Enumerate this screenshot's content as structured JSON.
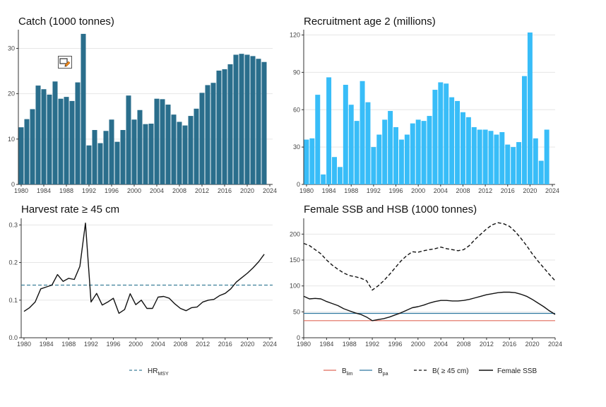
{
  "colors": {
    "catch_bar": "#2a6e8c",
    "recruit_bar": "#38bdf8",
    "hr_line": "#111111",
    "hrmsy_line": "#3d7f99",
    "blim_line": "#e06a5a",
    "bpa_line": "#2f78a0",
    "grid": "#e6e6e6",
    "axis": "#333333"
  },
  "icons": {
    "edit": "edit-pencil-icon"
  },
  "legends": {
    "hr": {
      "msy_main": "HR",
      "msy_sub": "MSY"
    },
    "ssb": {
      "blim_main": "B",
      "blim_sub": "lim",
      "bpa_main": "B",
      "bpa_sub": "pa",
      "b45": "B( ≥ 45 cm)",
      "female": "Female SSB"
    }
  },
  "chart_data": [
    {
      "type": "bar",
      "title": "Catch (1000 tonnes)",
      "xlabel": "",
      "ylabel": "",
      "x": [
        1980,
        1981,
        1982,
        1983,
        1984,
        1985,
        1986,
        1987,
        1988,
        1989,
        1990,
        1991,
        1992,
        1993,
        1994,
        1995,
        1996,
        1997,
        1998,
        1999,
        2000,
        2001,
        2002,
        2003,
        2004,
        2005,
        2006,
        2007,
        2008,
        2009,
        2010,
        2011,
        2012,
        2013,
        2014,
        2015,
        2016,
        2017,
        2018,
        2019,
        2020,
        2021,
        2022,
        2023
      ],
      "values": [
        12.6,
        14.4,
        16.6,
        21.8,
        21.0,
        19.8,
        22.7,
        18.9,
        19.3,
        18.4,
        22.5,
        33.2,
        8.6,
        12.0,
        9.1,
        11.8,
        14.3,
        9.4,
        12.0,
        19.6,
        14.3,
        16.4,
        13.3,
        13.4,
        18.9,
        18.8,
        17.6,
        15.4,
        13.8,
        13.0,
        15.1,
        16.7,
        20.2,
        21.9,
        22.4,
        25.1,
        25.4,
        26.5,
        28.6,
        28.8,
        28.6,
        28.3,
        27.7,
        27.0
      ],
      "xlim": [
        1979.5,
        2024.5
      ],
      "ylim": [
        0,
        33.5
      ],
      "xticks": [
        1980,
        1984,
        1988,
        1992,
        1996,
        2000,
        2004,
        2008,
        2012,
        2016,
        2020,
        2024
      ],
      "yticks": [
        0,
        10,
        20,
        30
      ],
      "grid": true
    },
    {
      "type": "bar",
      "title": "Recruitment age 2 (millions)",
      "xlabel": "",
      "ylabel": "",
      "x": [
        1980,
        1981,
        1982,
        1983,
        1984,
        1985,
        1986,
        1987,
        1988,
        1989,
        1990,
        1991,
        1992,
        1993,
        1994,
        1995,
        1996,
        1997,
        1998,
        1999,
        2000,
        2001,
        2002,
        2003,
        2004,
        2005,
        2006,
        2007,
        2008,
        2009,
        2010,
        2011,
        2012,
        2013,
        2014,
        2015,
        2016,
        2017,
        2018,
        2019,
        2020,
        2021,
        2022,
        2023
      ],
      "values": [
        36,
        37,
        72,
        8,
        86,
        22,
        14,
        80,
        64,
        51,
        83,
        66,
        30,
        40,
        52,
        59,
        46,
        36,
        40,
        49,
        52,
        51,
        55,
        76,
        82,
        81,
        70,
        67,
        58,
        54,
        46,
        44,
        44,
        43,
        40,
        42,
        32,
        30,
        34,
        87,
        122,
        37,
        19,
        44
      ],
      "xlim": [
        1979.5,
        2024.5
      ],
      "ylim": [
        0,
        122
      ],
      "xticks": [
        1980,
        1984,
        1988,
        1992,
        1996,
        2000,
        2004,
        2008,
        2012,
        2016,
        2020,
        2024
      ],
      "yticks": [
        0,
        30,
        60,
        90,
        120
      ],
      "grid": true
    },
    {
      "type": "line",
      "title": "Harvest rate  ≥ 45 cm",
      "xlabel": "",
      "ylabel": "",
      "series": [
        {
          "x": [
            1980,
            1981,
            1982,
            1983,
            1984,
            1985,
            1986,
            1987,
            1988,
            1989,
            1990,
            1991,
            1992,
            1993,
            1994,
            1995,
            1996,
            1997,
            1998,
            1999,
            2000,
            2001,
            2002,
            2003,
            2004,
            2005,
            2006,
            2007,
            2008,
            2009,
            2010,
            2011,
            2012,
            2013,
            2014,
            2015,
            2016,
            2017,
            2018,
            2019,
            2020,
            2021,
            2022,
            2023
          ],
          "values": [
            0.07,
            0.08,
            0.095,
            0.13,
            0.135,
            0.14,
            0.168,
            0.15,
            0.158,
            0.155,
            0.19,
            0.305,
            0.095,
            0.118,
            0.087,
            0.095,
            0.105,
            0.065,
            0.075,
            0.117,
            0.088,
            0.1,
            0.078,
            0.078,
            0.108,
            0.11,
            0.105,
            0.09,
            0.078,
            0.072,
            0.08,
            0.082,
            0.095,
            0.1,
            0.102,
            0.112,
            0.118,
            0.13,
            0.148,
            0.16,
            0.172,
            0.186,
            0.202,
            0.222
          ]
        }
      ],
      "reference_lines": [
        {
          "label": "HRMSY",
          "y": 0.14,
          "style": "dashed"
        }
      ],
      "xlim": [
        1979.5,
        2024.5
      ],
      "ylim": [
        0,
        0.31
      ],
      "xticks": [
        1980,
        1984,
        1988,
        1992,
        1996,
        2000,
        2004,
        2008,
        2012,
        2016,
        2020,
        2024
      ],
      "yticks": [
        0.0,
        0.1,
        0.2,
        0.3
      ],
      "grid": true,
      "legend": "bottom"
    },
    {
      "type": "line",
      "title": "Female SSB and HSB (1000 tonnes)",
      "xlabel": "",
      "ylabel": "",
      "series": [
        {
          "name": "B( ≥ 45 cm)",
          "style": "dashed",
          "x": [
            1980,
            1981,
            1982,
            1983,
            1984,
            1985,
            1986,
            1987,
            1988,
            1989,
            1990,
            1991,
            1992,
            1993,
            1994,
            1995,
            1996,
            1997,
            1998,
            1999,
            2000,
            2001,
            2002,
            2003,
            2004,
            2005,
            2006,
            2007,
            2008,
            2009,
            2010,
            2011,
            2012,
            2013,
            2014,
            2015,
            2016,
            2017,
            2018,
            2019,
            2020,
            2021,
            2022,
            2023,
            2024
          ],
          "values": [
            182,
            178,
            170,
            162,
            150,
            140,
            132,
            125,
            120,
            118,
            115,
            110,
            92,
            100,
            110,
            122,
            135,
            148,
            158,
            166,
            165,
            168,
            170,
            172,
            175,
            172,
            170,
            168,
            170,
            178,
            190,
            200,
            210,
            218,
            222,
            220,
            215,
            205,
            192,
            178,
            162,
            148,
            135,
            122,
            110
          ]
        },
        {
          "name": "Female SSB",
          "style": "solid",
          "x": [
            1980,
            1981,
            1982,
            1983,
            1984,
            1985,
            1986,
            1987,
            1988,
            1989,
            1990,
            1991,
            1992,
            1993,
            1994,
            1995,
            1996,
            1997,
            1998,
            1999,
            2000,
            2001,
            2002,
            2003,
            2004,
            2005,
            2006,
            2007,
            2008,
            2009,
            2010,
            2011,
            2012,
            2013,
            2014,
            2015,
            2016,
            2017,
            2018,
            2019,
            2020,
            2021,
            2022,
            2023,
            2024
          ],
          "values": [
            80,
            75,
            76,
            75,
            70,
            66,
            62,
            56,
            52,
            48,
            45,
            40,
            33,
            35,
            37,
            40,
            44,
            48,
            53,
            58,
            60,
            63,
            67,
            70,
            72,
            72,
            71,
            71,
            72,
            74,
            77,
            80,
            83,
            85,
            87,
            88,
            88,
            87,
            84,
            80,
            74,
            67,
            60,
            52,
            45
          ]
        }
      ],
      "reference_lines": [
        {
          "label": "Blim",
          "y": 33,
          "style": "solid"
        },
        {
          "label": "Bpa",
          "y": 47,
          "style": "solid"
        }
      ],
      "xlim": [
        1980,
        2024
      ],
      "ylim": [
        0,
        225
      ],
      "xticks": [
        1980,
        1984,
        1988,
        1992,
        1996,
        2000,
        2004,
        2008,
        2012,
        2016,
        2020,
        2024
      ],
      "yticks": [
        0,
        50,
        100,
        150,
        200
      ],
      "grid": true,
      "legend": "bottom"
    }
  ]
}
